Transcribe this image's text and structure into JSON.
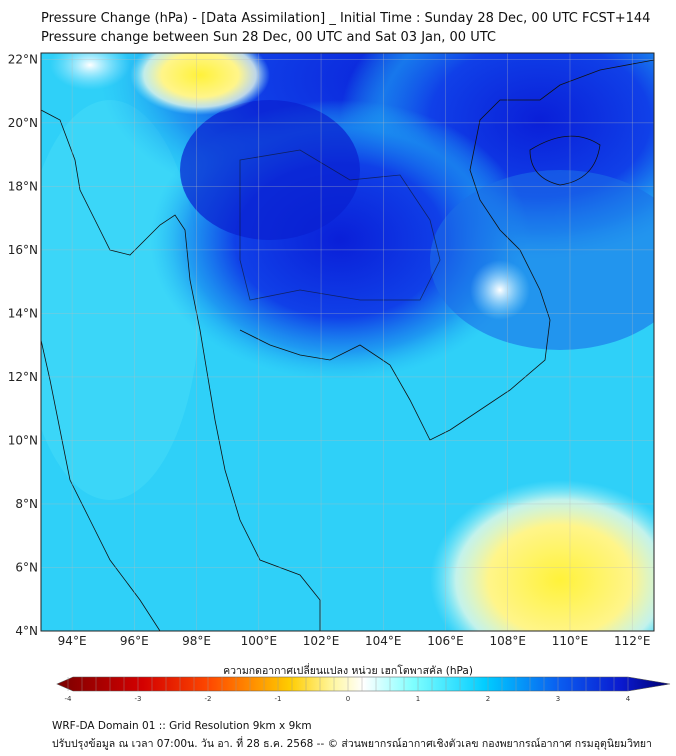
{
  "header": {
    "title_line1": "Pressure Change (hPa) - [Data Assimilation] _ Initial Time : Sunday 28 Dec, 00 UTC FCST+144",
    "title_line2": "Pressure change between Sun 28 Dec, 00 UTC and Sat 03 Jan, 00 UTC"
  },
  "map": {
    "lat_labels": [
      "22°N",
      "20°N",
      "18°N",
      "16°N",
      "14°N",
      "12°N",
      "10°N",
      "8°N",
      "6°N",
      "4°N"
    ],
    "lat_values": [
      22,
      20,
      18,
      16,
      14,
      12,
      10,
      8,
      6,
      4
    ],
    "lon_labels": [
      "94°E",
      "96°E",
      "98°E",
      "100°E",
      "102°E",
      "104°E",
      "106°E",
      "108°E",
      "110°E",
      "112°E"
    ],
    "lon_values": [
      94,
      96,
      98,
      100,
      102,
      104,
      106,
      108,
      110,
      112
    ],
    "extent": {
      "lon": [
        93,
        112.7
      ],
      "lat": [
        4,
        22.2
      ]
    }
  },
  "colorbar": {
    "label": "ความกดอากาศเปลี่ยนแปลง หน่วย เฮกโตพาสคัล (hPa)",
    "ticks": [
      "-4",
      "-3",
      "-2",
      "-1",
      "0",
      "1",
      "2",
      "3",
      "4"
    ],
    "tick_values": [
      -4,
      -3,
      -2,
      -1,
      0,
      1,
      2,
      3,
      4
    ],
    "range": [
      -4.2,
      4.2
    ],
    "colors": [
      "#7a0000",
      "#ff1a00",
      "#ff9900",
      "#ffe74a",
      "#ffffff",
      "#66ffff",
      "#00ccff",
      "#0044ee",
      "#00006e"
    ]
  },
  "footer": {
    "line1": "WRF-DA Domain 01 :: Grid Resolution 9km x 9km",
    "line2": "ปรับปรุงข้อมูล ณ เวลา 07:00น. วัน อา. ที่ 28 ธ.ค. 2568 -- © ส่วนพยากรณ์อากาศเชิงตัวเลข กองพยากรณ์อากาศ กรมอุตุนิยมวิทยา"
  }
}
